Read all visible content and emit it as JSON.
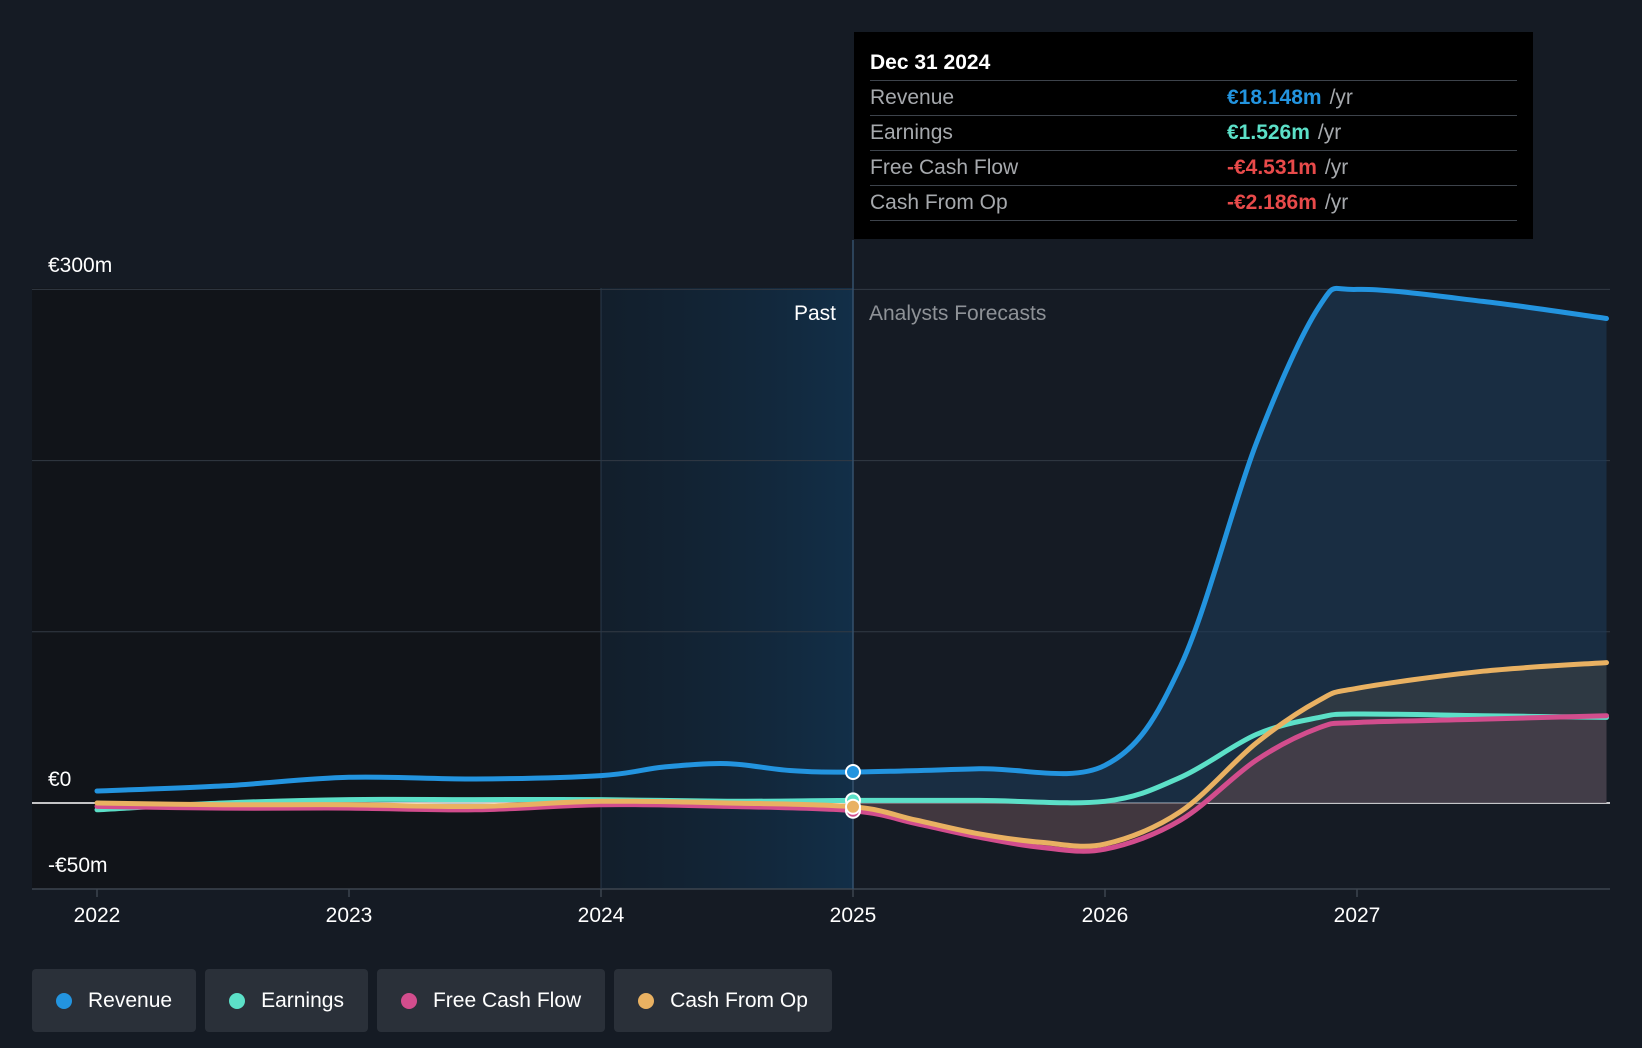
{
  "colors": {
    "revenue": "#2394df",
    "earnings": "#5ce0c8",
    "fcf": "#d24d8d",
    "cfo": "#e9b162",
    "negative": "#e84a4a"
  },
  "tooltip": {
    "date": "Dec 31 2024",
    "rows": [
      {
        "label": "Revenue",
        "value": "€18.148m",
        "unit": "/yr",
        "color": "#2394df"
      },
      {
        "label": "Earnings",
        "value": "€1.526m",
        "unit": "/yr",
        "color": "#5ce0c8"
      },
      {
        "label": "Free Cash Flow",
        "value": "-€4.531m",
        "unit": "/yr",
        "color": "#e84a4a"
      },
      {
        "label": "Cash From Op",
        "value": "-€2.186m",
        "unit": "/yr",
        "color": "#e84a4a"
      }
    ]
  },
  "legend": [
    {
      "label": "Revenue",
      "color": "#2394df"
    },
    {
      "label": "Earnings",
      "color": "#5ce0c8"
    },
    {
      "label": "Free Cash Flow",
      "color": "#d24d8d"
    },
    {
      "label": "Cash From Op",
      "color": "#e9b162"
    }
  ],
  "chart_data": {
    "type": "line",
    "x_ticks": [
      "2022",
      "2023",
      "2024",
      "2025",
      "2026",
      "2027"
    ],
    "y_ticks": [
      "€300m",
      "€0",
      "-€50m"
    ],
    "ylim": [
      -50,
      300
    ],
    "xlim": [
      2021.75,
      2027.99
    ],
    "past_label": "Past",
    "forecast_label": "Analysts Forecasts",
    "highlight_range": [
      2024.0,
      2025.0
    ],
    "marker_x": 2025.0,
    "grid": true,
    "series": [
      {
        "name": "Revenue",
        "key": "revenue",
        "points": [
          [
            2022.0,
            7
          ],
          [
            2022.5,
            10
          ],
          [
            2023.0,
            15
          ],
          [
            2023.5,
            14
          ],
          [
            2024.0,
            16
          ],
          [
            2024.25,
            21
          ],
          [
            2024.5,
            23
          ],
          [
            2024.75,
            19
          ],
          [
            2025.0,
            18.1
          ],
          [
            2025.5,
            20
          ],
          [
            2026.0,
            22
          ],
          [
            2026.3,
            80
          ],
          [
            2026.6,
            210
          ],
          [
            2026.85,
            290
          ],
          [
            2027.0,
            300
          ],
          [
            2027.5,
            293
          ],
          [
            2027.99,
            283
          ]
        ]
      },
      {
        "name": "Earnings",
        "key": "earnings",
        "points": [
          [
            2022.0,
            -4
          ],
          [
            2022.5,
            0
          ],
          [
            2023.0,
            2
          ],
          [
            2023.5,
            2
          ],
          [
            2024.0,
            2
          ],
          [
            2024.5,
            1
          ],
          [
            2025.0,
            1.5
          ],
          [
            2025.5,
            1.5
          ],
          [
            2026.0,
            1
          ],
          [
            2026.3,
            15
          ],
          [
            2026.6,
            40
          ],
          [
            2026.85,
            50
          ],
          [
            2027.0,
            52
          ],
          [
            2027.5,
            51
          ],
          [
            2027.99,
            50
          ]
        ]
      },
      {
        "name": "Free Cash Flow",
        "key": "fcf",
        "points": [
          [
            2022.0,
            -2
          ],
          [
            2022.5,
            -3
          ],
          [
            2023.0,
            -3
          ],
          [
            2023.5,
            -4
          ],
          [
            2024.0,
            -1
          ],
          [
            2024.5,
            -2
          ],
          [
            2025.0,
            -4.5
          ],
          [
            2025.25,
            -12
          ],
          [
            2025.5,
            -20
          ],
          [
            2025.75,
            -26
          ],
          [
            2026.0,
            -27
          ],
          [
            2026.3,
            -10
          ],
          [
            2026.6,
            25
          ],
          [
            2026.85,
            44
          ],
          [
            2027.0,
            47
          ],
          [
            2027.5,
            49
          ],
          [
            2027.99,
            51
          ]
        ]
      },
      {
        "name": "Cash From Op",
        "key": "cfo",
        "points": [
          [
            2022.0,
            0
          ],
          [
            2022.5,
            -1
          ],
          [
            2023.0,
            -1
          ],
          [
            2023.5,
            -2
          ],
          [
            2024.0,
            1
          ],
          [
            2024.5,
            0
          ],
          [
            2025.0,
            -2.2
          ],
          [
            2025.25,
            -10
          ],
          [
            2025.5,
            -18
          ],
          [
            2025.75,
            -23
          ],
          [
            2026.0,
            -24
          ],
          [
            2026.3,
            -5
          ],
          [
            2026.6,
            35
          ],
          [
            2026.85,
            60
          ],
          [
            2027.0,
            67
          ],
          [
            2027.5,
            77
          ],
          [
            2027.99,
            82
          ]
        ]
      }
    ]
  }
}
